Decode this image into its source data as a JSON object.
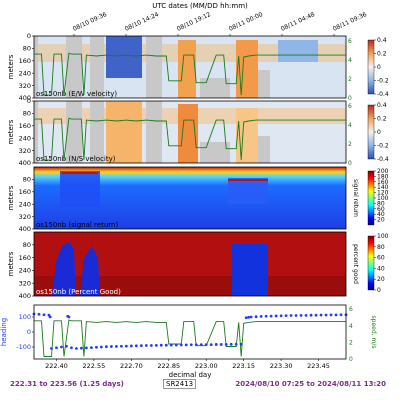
{
  "header": {
    "title": "UTC dates (MM/DD hh:mm)",
    "date_ticks": [
      "08/10 09:36",
      "08/10 14:24",
      "08/10 19:12",
      "08/11 00:00",
      "08/11 04:48",
      "08/11 09:36"
    ]
  },
  "footer": {
    "range_text": "222.31 to 223.56 (1.25 days)",
    "cruise": "SR2413",
    "date_range": "2024/08/10 07:25 to 2024/08/11 13:20"
  },
  "colors": {
    "track_green": "#1a7a1a",
    "heading_blue": "#1f3cff",
    "no_data_gray": "#c8c8c8"
  },
  "chart_data": [
    {
      "type": "heatmap",
      "label": "os150nb (E/W velocity)",
      "ylabel": "meters",
      "yticks": [
        0,
        80,
        160,
        240,
        320,
        400
      ],
      "ylim": [
        400,
        0
      ],
      "colorbar_ticks": [
        -0.4,
        -0.2,
        0.0,
        0.2,
        0.4
      ],
      "colormap": "RdBu_r",
      "right_axis_ticks": [
        0,
        2,
        4,
        6
      ]
    },
    {
      "type": "heatmap",
      "label": "os150nb (N/S velocity)",
      "ylabel": "meters",
      "yticks": [
        0,
        80,
        160,
        240,
        320,
        400
      ],
      "ylim": [
        400,
        0
      ],
      "colorbar_ticks": [
        -0.4,
        -0.2,
        0.0,
        0.2,
        0.4
      ],
      "colormap": "RdBu_r",
      "right_axis_ticks": [
        0,
        2,
        4,
        6
      ]
    },
    {
      "type": "heatmap",
      "label": "os150nb (signal return)",
      "ylabel": "meters",
      "yticks": [
        80,
        160,
        240,
        320,
        400
      ],
      "ylim": [
        400,
        0
      ],
      "colorbar_label": "signal return",
      "colorbar_ticks": [
        20,
        40,
        60,
        80,
        100,
        120,
        140,
        160,
        180,
        200
      ],
      "colormap": "jet"
    },
    {
      "type": "heatmap",
      "label": "os150nb (Percent Good)",
      "ylabel": "meters",
      "yticks": [
        80,
        160,
        240,
        320,
        400
      ],
      "ylim": [
        400,
        0
      ],
      "colorbar_label": "percent good",
      "colorbar_ticks": [
        0,
        20,
        40,
        60,
        80,
        100
      ],
      "colormap": "jet"
    },
    {
      "type": "scatter",
      "ylabel": "heading",
      "y2label": "speed, m/s",
      "xlabel": "decimal day",
      "xlim": [
        222.31,
        223.56
      ],
      "xticks": [
        222.4,
        222.55,
        222.7,
        222.85,
        223.0,
        223.15,
        223.3,
        223.45
      ],
      "xtick_labels": [
        "222.40",
        "222.55",
        "222.70",
        "222.85",
        "223.00",
        "223.15",
        "223.30",
        "223.45"
      ],
      "ylim": [
        -180,
        180
      ],
      "yticks": [
        -100,
        0,
        100
      ],
      "y2lim": [
        0,
        6.5
      ],
      "y2ticks": [
        0,
        2,
        4,
        6
      ],
      "series": [
        {
          "kind": "heading",
          "x": [
            222.31,
            222.33,
            222.35,
            222.37,
            222.375,
            222.38,
            222.4,
            222.42,
            222.44,
            222.445,
            222.45,
            222.46,
            222.48,
            222.5,
            222.52,
            222.54,
            222.56,
            222.58,
            222.6,
            222.62,
            222.64,
            222.66,
            222.68,
            222.7,
            222.72,
            222.74,
            222.76,
            222.78,
            222.8,
            222.82,
            222.84,
            222.86,
            222.88,
            222.9,
            222.92,
            222.94,
            222.96,
            222.98,
            223.0,
            223.02,
            223.04,
            223.06,
            223.08,
            223.1,
            223.12,
            223.14,
            223.16,
            223.17,
            223.18,
            223.2,
            223.22,
            223.24,
            223.26,
            223.28,
            223.3,
            223.32,
            223.34,
            223.36,
            223.38,
            223.4,
            223.42,
            223.44,
            223.46,
            223.48,
            223.5,
            223.52,
            223.54,
            223.56
          ],
          "y": [
            120,
            118,
            115,
            112,
            100,
            -110,
            -105,
            -100,
            -95,
            105,
            100,
            -105,
            -110,
            -108,
            -106,
            -104,
            -102,
            -100,
            -98,
            -97,
            -96,
            -95,
            -94,
            -93,
            -92,
            -91,
            -90,
            -90,
            -89,
            -88,
            -88,
            -87,
            -87,
            -86,
            -86,
            -85,
            -85,
            -84,
            -84,
            -84,
            -83,
            -83,
            -83,
            -82,
            -82,
            -82,
            95,
            98,
            100,
            102,
            104,
            105,
            106,
            107,
            108,
            109,
            110,
            110,
            111,
            111,
            112,
            112,
            113,
            113,
            114,
            114,
            115,
            115
          ]
        },
        {
          "kind": "speed",
          "x": [
            222.31,
            222.34,
            222.35,
            222.38,
            222.39,
            222.42,
            222.43,
            222.45,
            222.46,
            222.5,
            222.51,
            222.52,
            222.56,
            222.6,
            222.64,
            222.68,
            222.72,
            222.76,
            222.8,
            222.84,
            222.85,
            222.9,
            222.91,
            222.95,
            222.96,
            223.0,
            223.04,
            223.07,
            223.08,
            223.12,
            223.13,
            223.14,
            223.15,
            223.17,
            223.2,
            223.25,
            223.3,
            223.35,
            223.4,
            223.45,
            223.5,
            223.56
          ],
          "y": [
            4.6,
            4.6,
            0.3,
            0.3,
            4.6,
            4.6,
            0.3,
            4.7,
            4.6,
            4.6,
            0.3,
            4.5,
            4.4,
            4.5,
            4.4,
            4.5,
            4.4,
            4.5,
            4.4,
            4.4,
            1.8,
            1.8,
            4.5,
            4.5,
            1.6,
            1.6,
            4.5,
            4.5,
            1.5,
            1.5,
            4.4,
            0.3,
            4.3,
            4.4,
            4.5,
            4.5,
            4.5,
            4.5,
            4.5,
            4.5,
            4.5,
            4.5
          ]
        }
      ]
    }
  ]
}
